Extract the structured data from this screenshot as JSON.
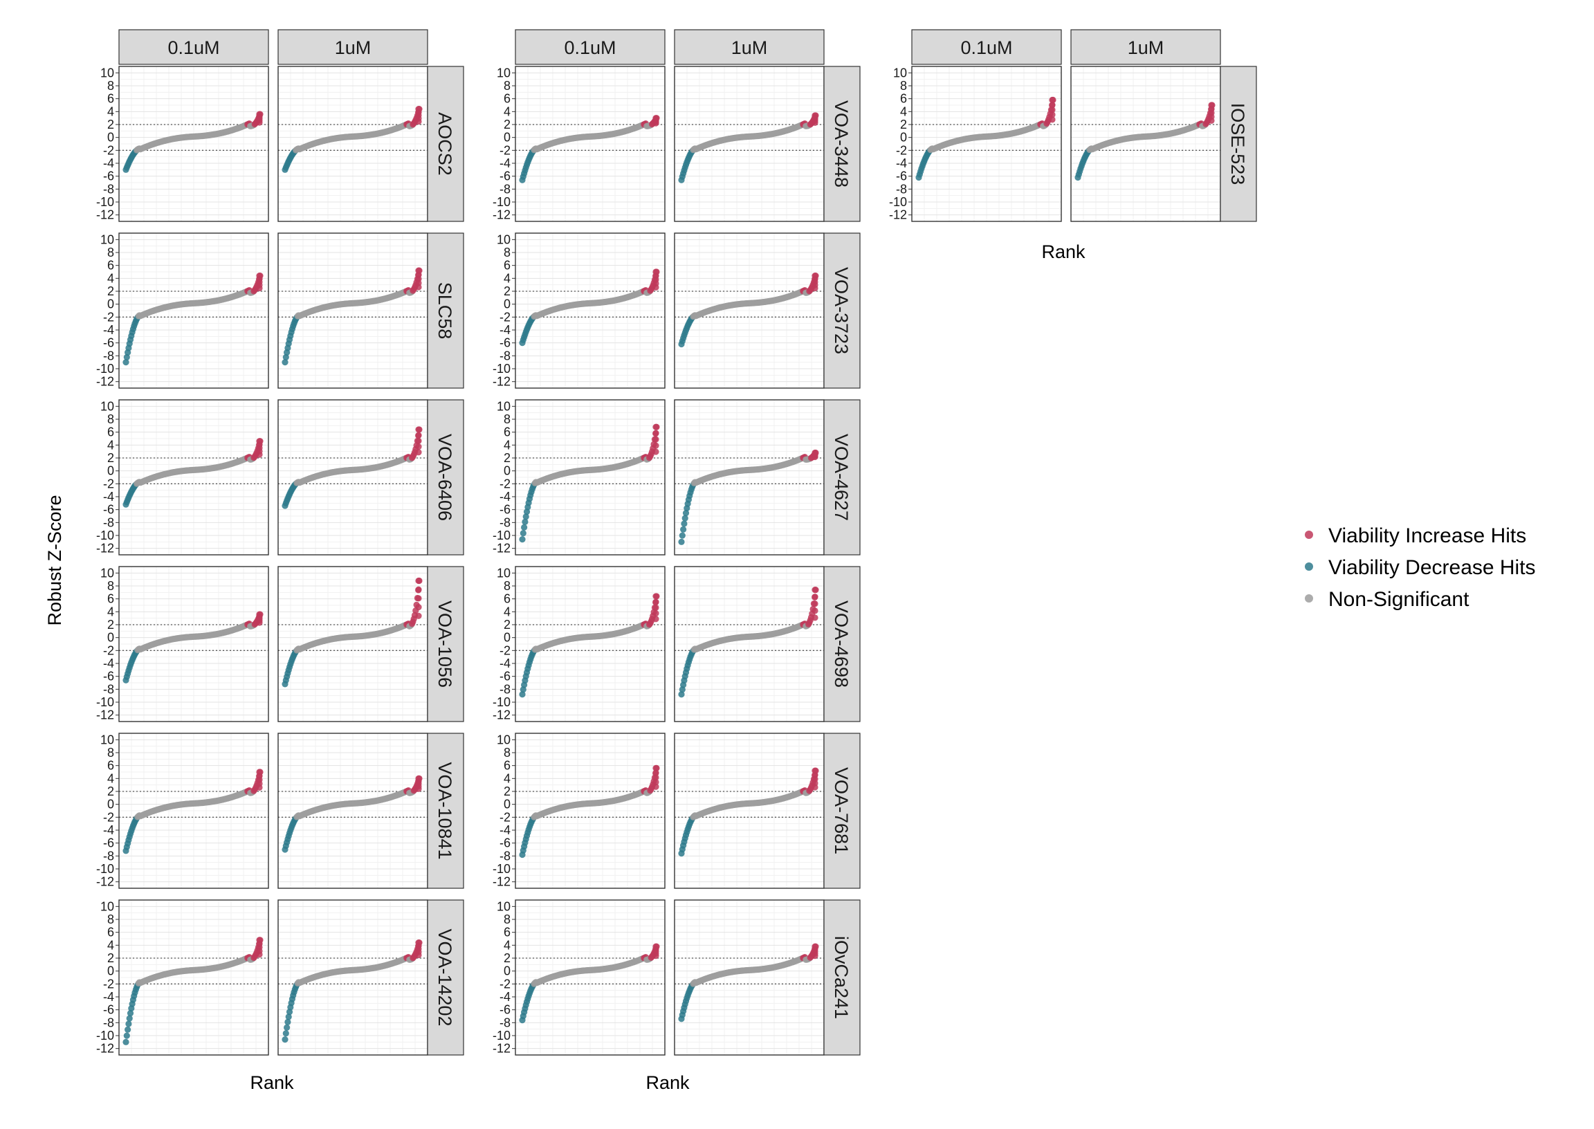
{
  "colors": {
    "increase": "#C03A5A",
    "decrease": "#2E7A8C",
    "nonsig": "#9E9E9E",
    "strip": "#D9D9D9",
    "grid_major": "#E3E3E3",
    "grid_minor": "#F1F1F1",
    "threshold": "#555555"
  },
  "legend": [
    {
      "key": "increase",
      "label": "Viability Increase Hits"
    },
    {
      "key": "decrease",
      "label": "Viability Decrease Hits"
    },
    {
      "key": "nonsig",
      "label": "Non-Significant"
    }
  ],
  "chart_data": {
    "type": "scatter",
    "description_free": true,
    "ylabel": "Robust Z-Score",
    "xlabel": "Rank",
    "concentrations": [
      "0.1uM",
      "1uM"
    ],
    "yticks": [
      10,
      8,
      6,
      4,
      2,
      0,
      -2,
      -4,
      -6,
      -8,
      -10,
      -12
    ],
    "ylim": [
      -13,
      11
    ],
    "thresholds": [
      2,
      -2
    ],
    "x_ticks_shown": false,
    "grid": true,
    "legend_position": "right",
    "groups": [
      {
        "panels": [
          {
            "cell_line": "AOCS2",
            "series": {
              "0.1uM": {
                "min": -5.0,
                "max": 3.6
              },
              "1uM": {
                "min": -5.0,
                "max": 4.4
              }
            }
          },
          {
            "cell_line": "SLC58",
            "series": {
              "0.1uM": {
                "min": -9.0,
                "max": 4.4
              },
              "1uM": {
                "min": -9.0,
                "max": 5.2
              }
            }
          },
          {
            "cell_line": "VOA-6406",
            "series": {
              "0.1uM": {
                "min": -5.2,
                "max": 4.6
              },
              "1uM": {
                "min": -5.4,
                "max": 6.4
              }
            }
          },
          {
            "cell_line": "VOA-1056",
            "series": {
              "0.1uM": {
                "min": -6.6,
                "max": 3.6
              },
              "1uM": {
                "min": -7.2,
                "max": 8.8
              }
            }
          },
          {
            "cell_line": "VOA-10841",
            "series": {
              "0.1uM": {
                "min": -7.2,
                "max": 5.0
              },
              "1uM": {
                "min": -7.0,
                "max": 4.0
              }
            }
          },
          {
            "cell_line": "VOA-14202",
            "series": {
              "0.1uM": {
                "min": -11.0,
                "max": 4.8
              },
              "1uM": {
                "min": -10.6,
                "max": 4.4
              }
            }
          }
        ]
      },
      {
        "panels": [
          {
            "cell_line": "VOA-3448",
            "series": {
              "0.1uM": {
                "min": -6.6,
                "max": 3.0
              },
              "1uM": {
                "min": -6.6,
                "max": 3.4
              }
            }
          },
          {
            "cell_line": "VOA-3723",
            "series": {
              "0.1uM": {
                "min": -6.0,
                "max": 5.0
              },
              "1uM": {
                "min": -6.2,
                "max": 4.4
              }
            }
          },
          {
            "cell_line": "VOA-4627",
            "series": {
              "0.1uM": {
                "min": -10.6,
                "max": 6.8
              },
              "1uM": {
                "min": -11.0,
                "max": 2.8
              }
            }
          },
          {
            "cell_line": "VOA-4698",
            "series": {
              "0.1uM": {
                "min": -8.8,
                "max": 6.4
              },
              "1uM": {
                "min": -8.8,
                "max": 7.4
              }
            }
          },
          {
            "cell_line": "VOA-7681",
            "series": {
              "0.1uM": {
                "min": -7.8,
                "max": 5.6
              },
              "1uM": {
                "min": -7.6,
                "max": 5.2
              }
            }
          },
          {
            "cell_line": "iOvCa241",
            "series": {
              "0.1uM": {
                "min": -7.6,
                "max": 3.8
              },
              "1uM": {
                "min": -7.4,
                "max": 3.8
              }
            }
          }
        ]
      },
      {
        "panels": [
          {
            "cell_line": "IOSE-523",
            "series": {
              "0.1uM": {
                "min": -6.2,
                "max": 5.8
              },
              "1uM": {
                "min": -6.2,
                "max": 5.0
              }
            }
          }
        ]
      }
    ]
  }
}
